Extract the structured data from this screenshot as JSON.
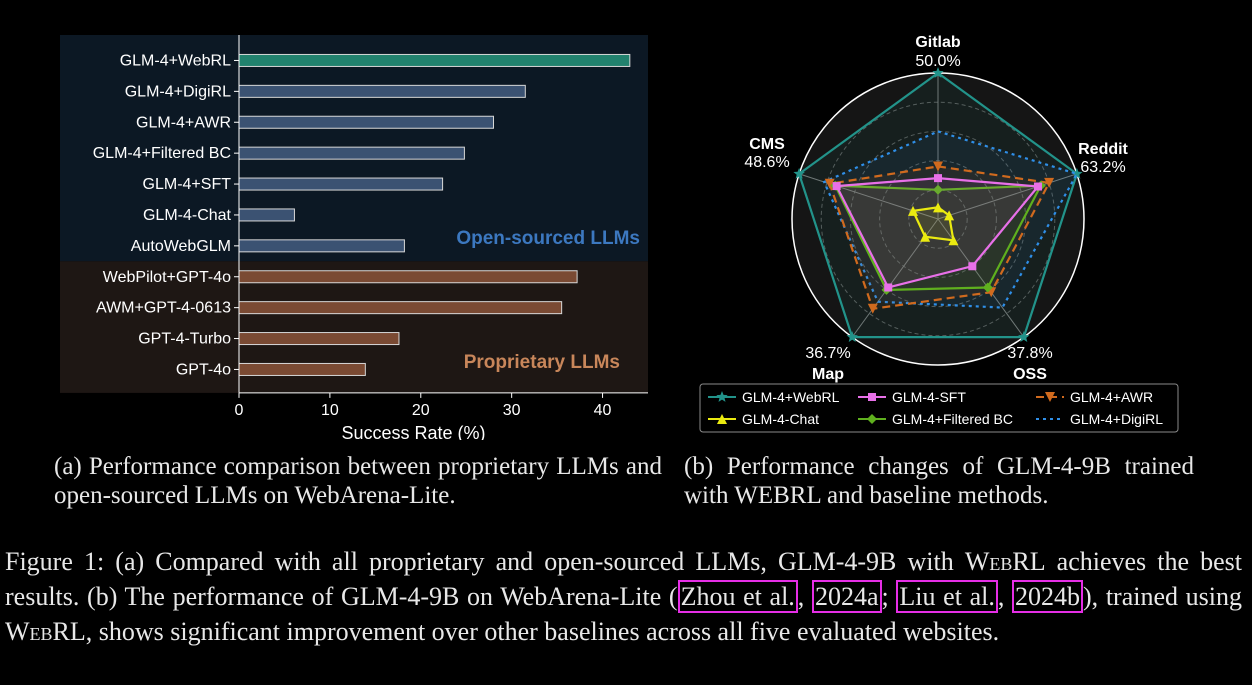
{
  "figure_a": {
    "region_labels": {
      "open": "Open-sourced LLMs",
      "proprietary": "Proprietary LLMs"
    },
    "caption": "(a) Performance comparison between proprietary LLMs and open-sourced LLMs on WebArena-Lite."
  },
  "figure_b": {
    "caption": "(b) Performance changes of GLM-4-9B trained with WEBRL and baseline methods."
  },
  "caption": {
    "prefix": "Figure 1: (a) Compared with all proprietary and open-sourced LLMs, GLM-4-9B with ",
    "webrl": "WebRL",
    "mid1": " achieves the best results. (b) The performance of GLM-4-9B on WebArena-Lite (",
    "cite1_author": "Zhou et al.",
    "sep1": ", ",
    "cite1_year": "2024a",
    "sep2": "; ",
    "cite2_author": "Liu et al.",
    "sep3": ", ",
    "cite2_year": "2024b",
    "mid2": "), trained using ",
    "webrl2": "WebRL",
    "suffix": ", shows significant improvement over other baselines across all five evaluated websites."
  },
  "colors": {
    "bg_open": "#0c1824",
    "bg_prop": "#1e1714",
    "bar_webrl": "#22826e",
    "bar_open": "#3b5272",
    "bar_prop": "#7a4a33",
    "label_open": "#3c78c0",
    "label_prop": "#c8865a"
  },
  "chart_data": [
    {
      "type": "bar",
      "orientation": "horizontal",
      "categories": [
        "GLM-4+WebRL",
        "GLM-4+DigiRL",
        "GLM-4+AWR",
        "GLM-4+Filtered BC",
        "GLM-4+SFT",
        "GLM-4-Chat",
        "AutoWebGLM",
        "WebPilot+GPT-4o",
        "AWM+GPT-4-0613",
        "GPT-4-Turbo",
        "GPT-4o"
      ],
      "values": [
        43.0,
        31.5,
        28.0,
        24.8,
        22.4,
        6.1,
        18.2,
        37.2,
        35.5,
        17.6,
        13.9
      ],
      "group": [
        "open",
        "open",
        "open",
        "open",
        "open",
        "open",
        "open",
        "prop",
        "prop",
        "prop",
        "prop"
      ],
      "xlabel": "Success Rate (%)",
      "xticks": [
        0,
        10,
        20,
        30,
        40
      ],
      "xlim": [
        0,
        45
      ]
    },
    {
      "type": "radar",
      "axes": [
        "Gitlab",
        "Reddit",
        "OSS",
        "Map",
        "CMS"
      ],
      "axis_max": [
        "50.0%",
        "63.2%",
        "37.8%",
        "36.7%",
        "48.6%"
      ],
      "series": [
        {
          "name": "GLM-4+WebRL",
          "values": [
            1.0,
            1.0,
            1.0,
            1.0,
            1.0
          ],
          "color": "#22938a",
          "dash": "",
          "marker": "star"
        },
        {
          "name": "GLM-4-SFT",
          "values": [
            0.28,
            0.72,
            0.4,
            0.58,
            0.73
          ],
          "color": "#e870e8",
          "dash": "",
          "marker": "square"
        },
        {
          "name": "GLM-4+AWR",
          "values": [
            0.36,
            0.8,
            0.62,
            0.76,
            0.78
          ],
          "color": "#d06a1e",
          "dash": "8,5",
          "marker": "triangle-down"
        },
        {
          "name": "GLM-4-Chat",
          "values": [
            0.08,
            0.08,
            0.18,
            0.15,
            0.18
          ],
          "color": "#eaea10",
          "dash": "",
          "marker": "triangle"
        },
        {
          "name": "GLM-4+Filtered BC",
          "values": [
            0.2,
            0.74,
            0.58,
            0.6,
            0.74
          ],
          "color": "#5fb01e",
          "dash": "",
          "marker": "diamond"
        },
        {
          "name": "GLM-4+DigiRL",
          "values": [
            0.6,
            1.0,
            0.75,
            0.7,
            0.82
          ],
          "color": "#2f8fe8",
          "dash": "3,4",
          "marker": ""
        }
      ]
    }
  ]
}
